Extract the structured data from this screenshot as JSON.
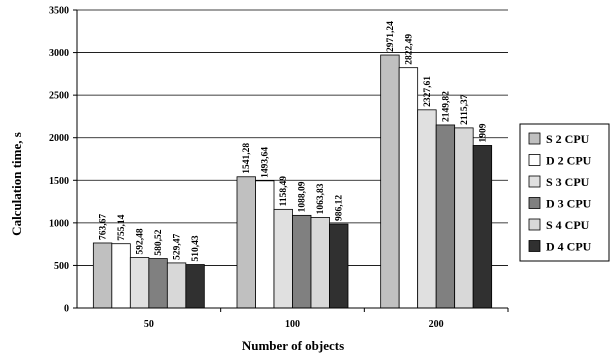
{
  "chart_data": {
    "type": "bar",
    "title": "",
    "xlabel": "Number of objects",
    "ylabel": "Calculation time, s",
    "categories": [
      "50",
      "100",
      "200"
    ],
    "ylim": [
      0,
      3500
    ],
    "yticks": [
      "0",
      "500",
      "1000",
      "1500",
      "2000",
      "2500",
      "3000",
      "3500"
    ],
    "grid": "horizontal",
    "legend": "right",
    "series": [
      {
        "name": "S 2 CPU",
        "color": "#c0c0c0",
        "values": [
          763.67,
          1541.28,
          2971.24
        ],
        "labels": [
          "763,67",
          "1541,28",
          "2971,24"
        ]
      },
      {
        "name": "D 2 CPU",
        "color": "#ffffff",
        "values": [
          755.14,
          1493.64,
          2822.49
        ],
        "labels": [
          "755,14",
          "1493,64",
          "2822,49"
        ]
      },
      {
        "name": "S 3 CPU",
        "color": "#e0e0e0",
        "values": [
          592.48,
          1158.49,
          2327.61
        ],
        "labels": [
          "592,48",
          "1158,49",
          "2327,61"
        ]
      },
      {
        "name": "D 3 CPU",
        "color": "#808080",
        "values": [
          580.52,
          1088.09,
          2149.82
        ],
        "labels": [
          "580,52",
          "1088,09",
          "2149,82"
        ]
      },
      {
        "name": "S 4 CPU",
        "color": "#d8d8d8",
        "values": [
          529.47,
          1063.83,
          2115.37
        ],
        "labels": [
          "529,47",
          "1063,83",
          "2115,37"
        ]
      },
      {
        "name": "D 4 CPU",
        "color": "#303030",
        "values": [
          510.43,
          986.12,
          1909
        ],
        "labels": [
          "510,43",
          "986,12",
          "1909"
        ]
      }
    ]
  }
}
